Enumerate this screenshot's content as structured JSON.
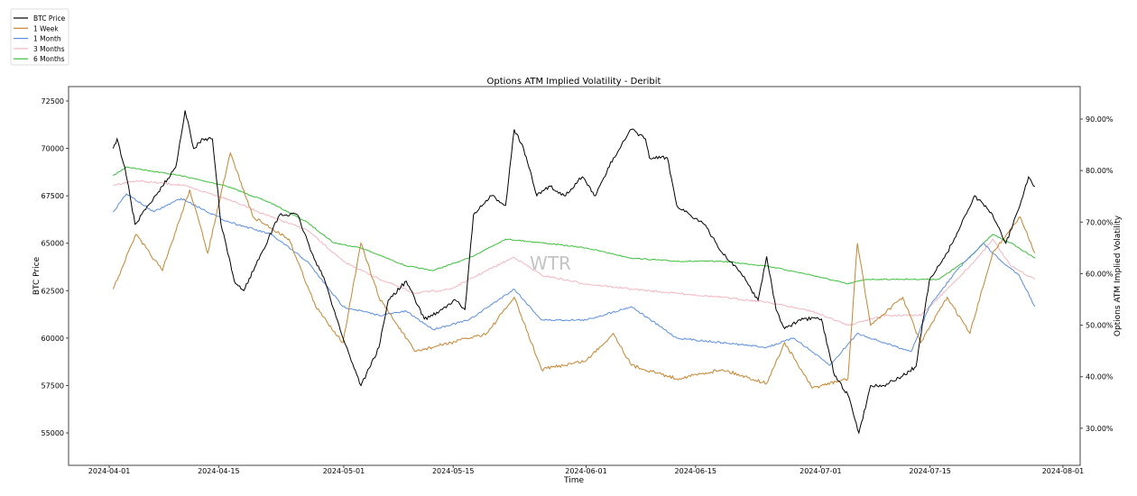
{
  "chart_data": {
    "type": "line",
    "title": "Options ATM Implied Volatility - Deribit",
    "xlabel": "Time",
    "ylabel_left": "BTC Price",
    "ylabel_right": "Options ATM Implied Volatility",
    "watermark": "WTR",
    "x_unit": "days since 2024-04-01",
    "xlim": [
      -5.2,
      124.2
    ],
    "ylim_left": [
      53290,
      73260
    ],
    "ylim_right": [
      22.8,
      96.3
    ],
    "x_ticks": [
      {
        "v": 0,
        "label": "2024-04-01"
      },
      {
        "v": 14,
        "label": "2024-04-15"
      },
      {
        "v": 30,
        "label": "2024-05-01"
      },
      {
        "v": 44,
        "label": "2024-05-15"
      },
      {
        "v": 61,
        "label": "2024-06-01"
      },
      {
        "v": 75,
        "label": "2024-06-15"
      },
      {
        "v": 91,
        "label": "2024-07-01"
      },
      {
        "v": 105,
        "label": "2024-07-15"
      },
      {
        "v": 122,
        "label": "2024-08-01"
      }
    ],
    "y_left_ticks": [
      "55000",
      "57500",
      "60000",
      "62500",
      "65000",
      "67500",
      "70000",
      "72500"
    ],
    "y_right_ticks": [
      "30.00%",
      "40.00%",
      "50.00%",
      "60.00%",
      "70.00%",
      "80.00%",
      "90.00%"
    ],
    "legend_position": "top-left",
    "series": [
      {
        "name": "BTC Price",
        "axis": "left",
        "color": "#000000",
        "x": [
          0.5,
          1,
          2,
          3.3,
          5,
          6.8,
          8.5,
          9.7,
          10.8,
          12,
          13.2,
          14.3,
          16,
          17.2,
          19.5,
          21.8,
          24.1,
          25.9,
          27.6,
          29.9,
          32.2,
          34.5,
          35.7,
          38,
          40.3,
          42.6,
          44.3,
          45.5,
          46.6,
          48.9,
          50.7,
          51.8,
          53,
          54.7,
          56.4,
          58.2,
          60.5,
          62.2,
          64.5,
          66.8,
          68.6,
          69.1,
          71.4,
          72.6,
          74.3,
          76.1,
          78.4,
          80.7,
          83,
          84.1,
          85.3,
          86.4,
          88.8,
          91.1,
          92.8,
          94.5,
          95.9,
          97.4,
          99.1,
          101.5,
          103.2,
          104.9,
          107.2,
          109,
          110.7,
          113,
          114.7,
          116.5,
          117.6,
          118.4
        ],
        "y": [
          70000,
          70500,
          69000,
          66000,
          67000,
          68000,
          69000,
          72000,
          70000,
          70500,
          70500,
          66000,
          63000,
          62500,
          64500,
          66500,
          66500,
          64500,
          63000,
          60000,
          57500,
          59500,
          62000,
          63000,
          61000,
          61500,
          62000,
          61500,
          66500,
          67500,
          67000,
          71000,
          70000,
          67500,
          68000,
          67500,
          68500,
          67500,
          69500,
          71000,
          70500,
          69500,
          69500,
          67000,
          66500,
          66000,
          64500,
          63500,
          62000,
          64300,
          61500,
          60500,
          61000,
          61000,
          58000,
          57000,
          55000,
          57500,
          57500,
          58000,
          58500,
          63000,
          64500,
          66000,
          67500,
          66500,
          65000,
          67000,
          68500,
          68000
        ]
      },
      {
        "name": "1 Week",
        "axis": "right",
        "color": "#c8842f",
        "x": [
          0.5,
          3.4,
          6.8,
          10.3,
          12.6,
          15.5,
          18.4,
          23,
          26.4,
          29.9,
          32.2,
          34.5,
          39.1,
          43.7,
          48.3,
          51.8,
          55.3,
          61,
          64.5,
          66.8,
          72.6,
          78.4,
          84.1,
          86.4,
          89.9,
          94.5,
          95.7,
          97.4,
          101.5,
          103.8,
          107.2,
          110.1,
          113,
          116.5,
          118.4
        ],
        "y": [
          57,
          67.6,
          60.6,
          76.3,
          64,
          83.4,
          71,
          66.7,
          53.6,
          46.6,
          65.9,
          55.4,
          44.9,
          46.6,
          48.4,
          55.4,
          41.4,
          43.1,
          48.4,
          42.2,
          39.6,
          41.4,
          38.7,
          46.6,
          37.8,
          39.6,
          65.9,
          50,
          55.4,
          46.6,
          55.4,
          48.4,
          64,
          71,
          64
        ]
      },
      {
        "name": "1 Month",
        "axis": "right",
        "color": "#5b8fe0",
        "x": [
          0.5,
          2.2,
          5.7,
          9.2,
          15,
          20.7,
          25.3,
          29.9,
          34.5,
          38,
          41.4,
          46,
          51.8,
          55.3,
          61,
          66.8,
          72.6,
          78.4,
          84.1,
          87.6,
          92.2,
          95.7,
          99.1,
          102.6,
          104.9,
          108.4,
          111.8,
          114.1,
          116.4,
          118.4
        ],
        "y": [
          72,
          75.5,
          72,
          74.6,
          70.2,
          67.6,
          62.4,
          53.6,
          51.9,
          52.7,
          49.2,
          51,
          57,
          51,
          51,
          53.6,
          47.5,
          46.6,
          45.7,
          47.5,
          42.2,
          48.4,
          46.6,
          44.9,
          53.6,
          60.6,
          65.9,
          62.4,
          59.7,
          53.6
        ]
      },
      {
        "name": "3 Months",
        "axis": "right",
        "color": "#f2b6c1",
        "x": [
          0.5,
          3.4,
          9.2,
          15,
          20.7,
          25.3,
          29.9,
          34.5,
          39.1,
          43.7,
          48.3,
          51.8,
          55.3,
          61,
          66.8,
          72.6,
          78.4,
          84.1,
          89.9,
          94.5,
          99.1,
          103.8,
          107.2,
          110.7,
          113,
          115.3,
          118.4
        ],
        "y": [
          77.2,
          78,
          77.2,
          74.6,
          71,
          68.5,
          62.4,
          59,
          56.2,
          57,
          60.6,
          63.2,
          59.7,
          58,
          57,
          56.2,
          55.4,
          54.5,
          52.7,
          50,
          51.9,
          51.9,
          57,
          62.4,
          66.7,
          61.5,
          58.9
        ]
      },
      {
        "name": "6 Months",
        "axis": "right",
        "color": "#3cc03c",
        "x": [
          0.5,
          2.2,
          9.2,
          15,
          20.7,
          25.3,
          28.7,
          32.2,
          38,
          41.4,
          46,
          50.7,
          55.3,
          61,
          66.8,
          72.6,
          78.4,
          84.1,
          89.9,
          94.5,
          96.8,
          101.5,
          106.1,
          109.5,
          113,
          115.3,
          118.4
        ],
        "y": [
          79,
          80.7,
          79,
          77,
          73.7,
          70,
          66,
          65,
          61.5,
          60.6,
          63,
          66.7,
          66,
          65,
          63,
          62.4,
          62.4,
          61.5,
          59.7,
          58,
          58.9,
          58.9,
          58.9,
          62.4,
          67.6,
          66,
          63
        ]
      }
    ]
  }
}
